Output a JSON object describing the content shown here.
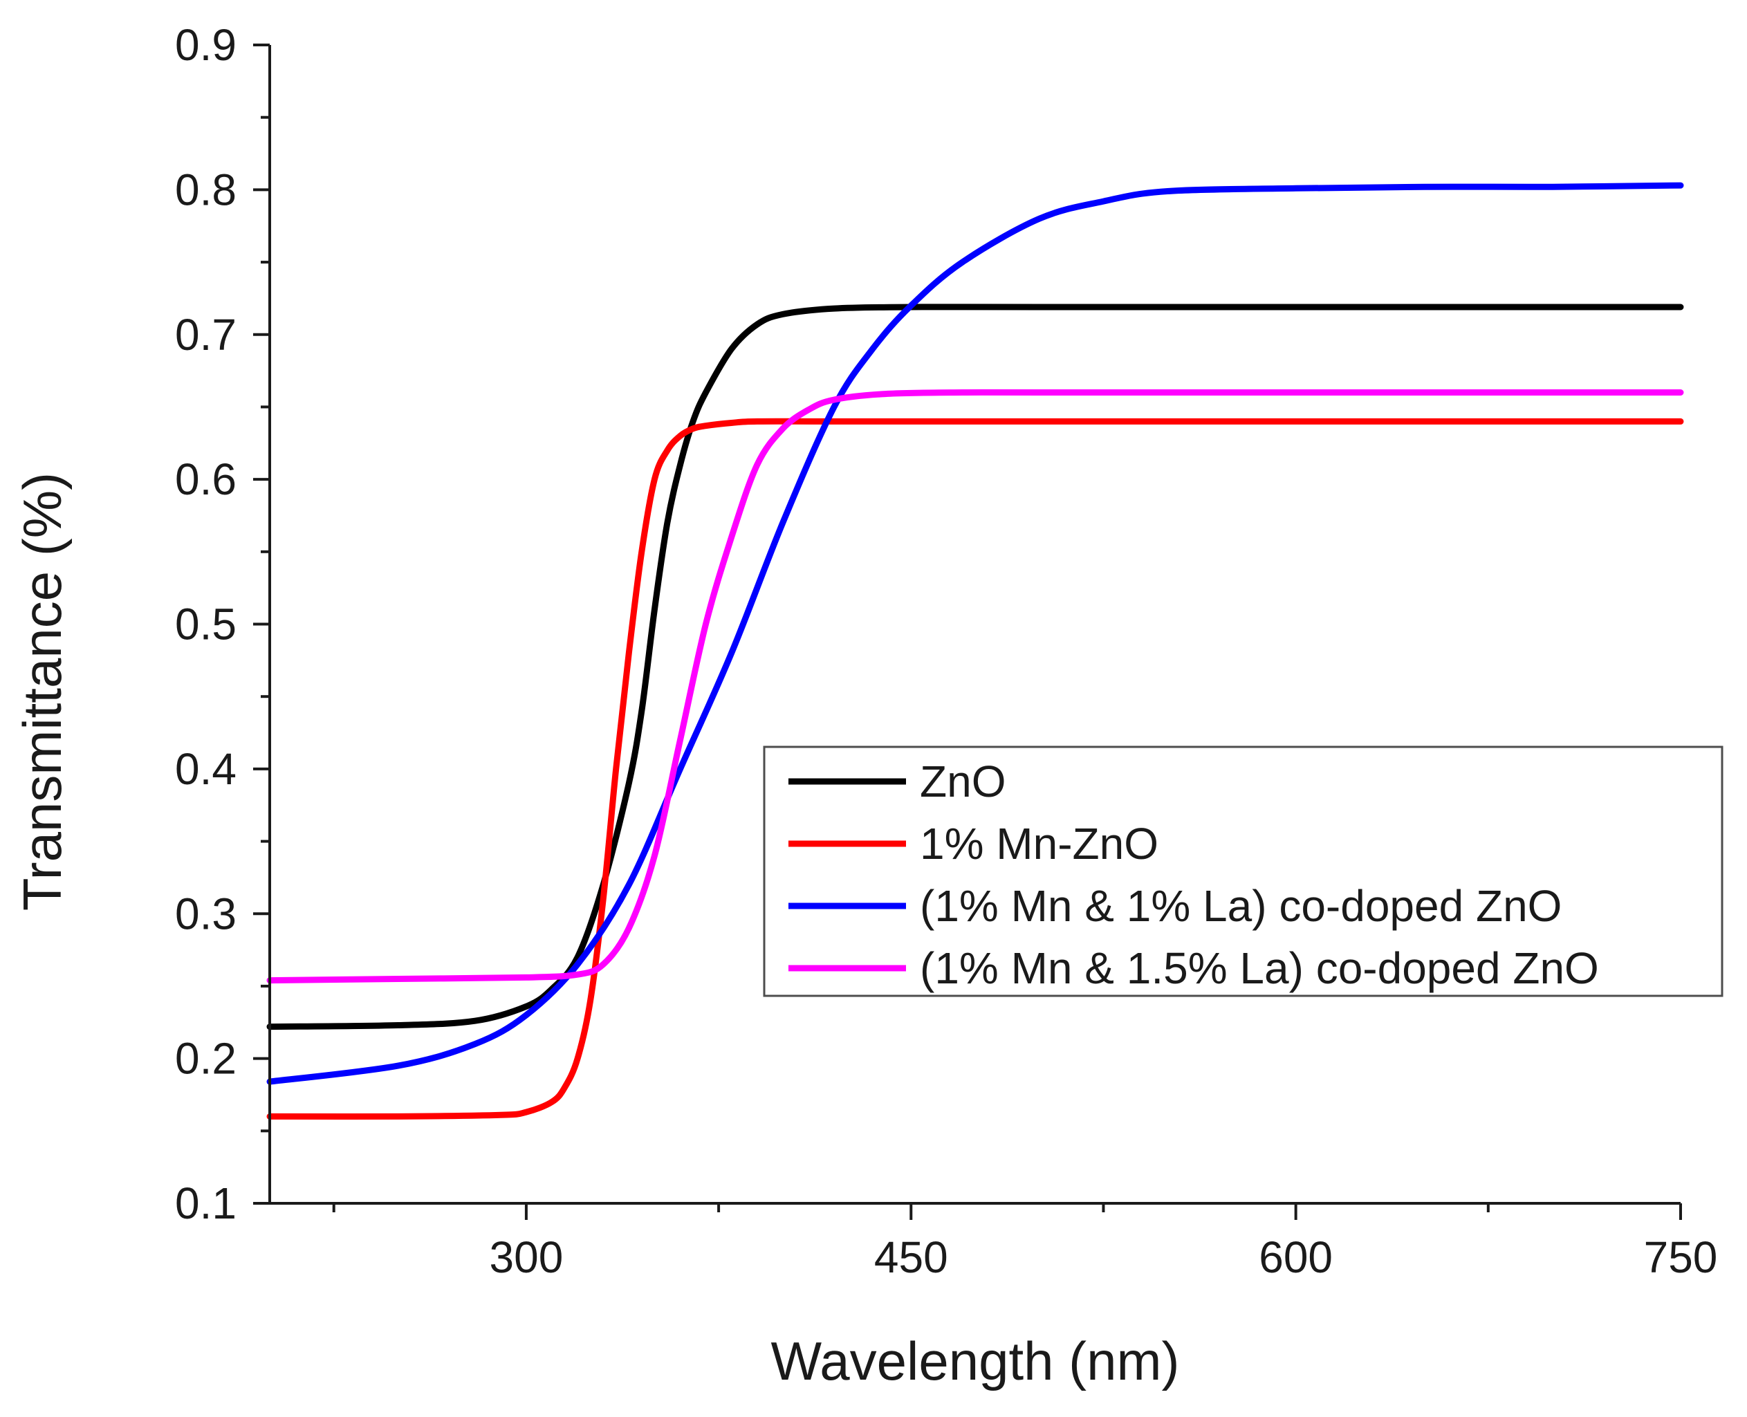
{
  "chart_data": {
    "type": "line",
    "title": "",
    "xlabel": "Wavelength (nm)",
    "ylabel": "Transmittance (%)",
    "xlim": [
      200,
      750
    ],
    "ylim": [
      0.1,
      0.9
    ],
    "xticks": [
      300,
      450,
      600,
      750
    ],
    "xtick_labels": [
      "300",
      "450",
      "600",
      "750"
    ],
    "xminor": [
      225,
      375,
      525,
      675
    ],
    "yticks": [
      0.1,
      0.2,
      0.3,
      0.4,
      0.5,
      0.6,
      0.7,
      0.8,
      0.9
    ],
    "ytick_labels": [
      "0.1",
      "0.2",
      "0.3",
      "0.4",
      "0.5",
      "0.6",
      "0.7",
      "0.8",
      "0.9"
    ],
    "yminor": [
      0.15,
      0.25,
      0.35,
      0.45,
      0.55,
      0.65,
      0.75,
      0.85
    ],
    "grid": false,
    "legend_position": "center-right",
    "series": [
      {
        "name": "ZnO",
        "color": "#000000",
        "x": [
          200,
          250,
          280,
          300,
          310,
          320,
          330,
          340,
          345,
          350,
          355,
          360,
          365,
          370,
          380,
          390,
          400,
          420,
          450,
          500,
          600,
          750
        ],
        "y": [
          0.222,
          0.223,
          0.226,
          0.236,
          0.248,
          0.27,
          0.32,
          0.39,
          0.44,
          0.51,
          0.57,
          0.61,
          0.64,
          0.66,
          0.69,
          0.707,
          0.714,
          0.718,
          0.719,
          0.719,
          0.719,
          0.719
        ]
      },
      {
        "name": "1% Mn-ZnO",
        "color": "#ff0000",
        "x": [
          200,
          250,
          290,
          300,
          310,
          315,
          320,
          325,
          330,
          335,
          340,
          345,
          350,
          355,
          360,
          365,
          370,
          380,
          390,
          420,
          500,
          600,
          750
        ],
        "y": [
          0.16,
          0.16,
          0.161,
          0.163,
          0.17,
          0.18,
          0.2,
          0.24,
          0.31,
          0.4,
          0.48,
          0.55,
          0.6,
          0.62,
          0.63,
          0.635,
          0.637,
          0.639,
          0.64,
          0.64,
          0.64,
          0.64,
          0.64
        ]
      },
      {
        "name": "(1% Mn & 1% La) co-doped ZnO",
        "color": "#0000ff",
        "x": [
          200,
          250,
          280,
          300,
          320,
          340,
          360,
          380,
          400,
          420,
          435,
          450,
          470,
          500,
          525,
          550,
          600,
          650,
          700,
          750
        ],
        "y": [
          0.184,
          0.195,
          0.21,
          0.23,
          0.265,
          0.32,
          0.4,
          0.48,
          0.57,
          0.65,
          0.69,
          0.72,
          0.75,
          0.78,
          0.792,
          0.799,
          0.801,
          0.802,
          0.802,
          0.803
        ]
      },
      {
        "name": "(1% Mn & 1.5% La) co-doped ZnO",
        "color": "#ff00ff",
        "x": [
          200,
          250,
          300,
          320,
          330,
          340,
          350,
          360,
          370,
          380,
          390,
          400,
          410,
          420,
          440,
          470,
          500,
          600,
          750
        ],
        "y": [
          0.254,
          0.255,
          0.256,
          0.258,
          0.265,
          0.29,
          0.34,
          0.42,
          0.5,
          0.56,
          0.61,
          0.635,
          0.648,
          0.655,
          0.659,
          0.66,
          0.66,
          0.66,
          0.66
        ]
      }
    ]
  }
}
